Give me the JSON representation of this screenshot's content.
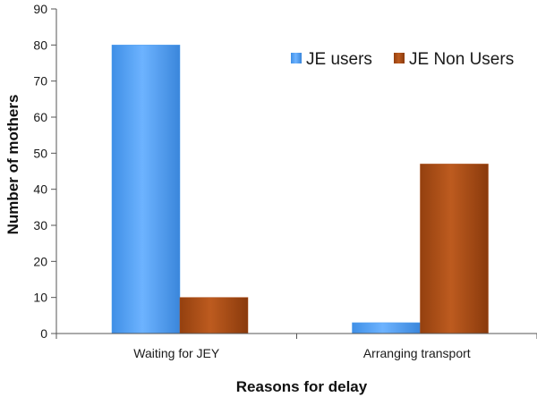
{
  "chart_data": {
    "type": "bar",
    "title": "",
    "xlabel": "Reasons for delay",
    "ylabel": "Number of mothers",
    "categories": [
      "Waiting for JEY",
      "Arranging transport"
    ],
    "series": [
      {
        "name": "JE users",
        "values": [
          80,
          3
        ],
        "color": "#4f9ff0"
      },
      {
        "name": "JE Non Users",
        "values": [
          10,
          47
        ],
        "color": "#a94a14"
      }
    ],
    "ylim": [
      0,
      90
    ],
    "yticks": [
      0,
      10,
      20,
      30,
      40,
      50,
      60,
      70,
      80,
      90
    ],
    "grid": false,
    "legend_position": "top-right"
  }
}
